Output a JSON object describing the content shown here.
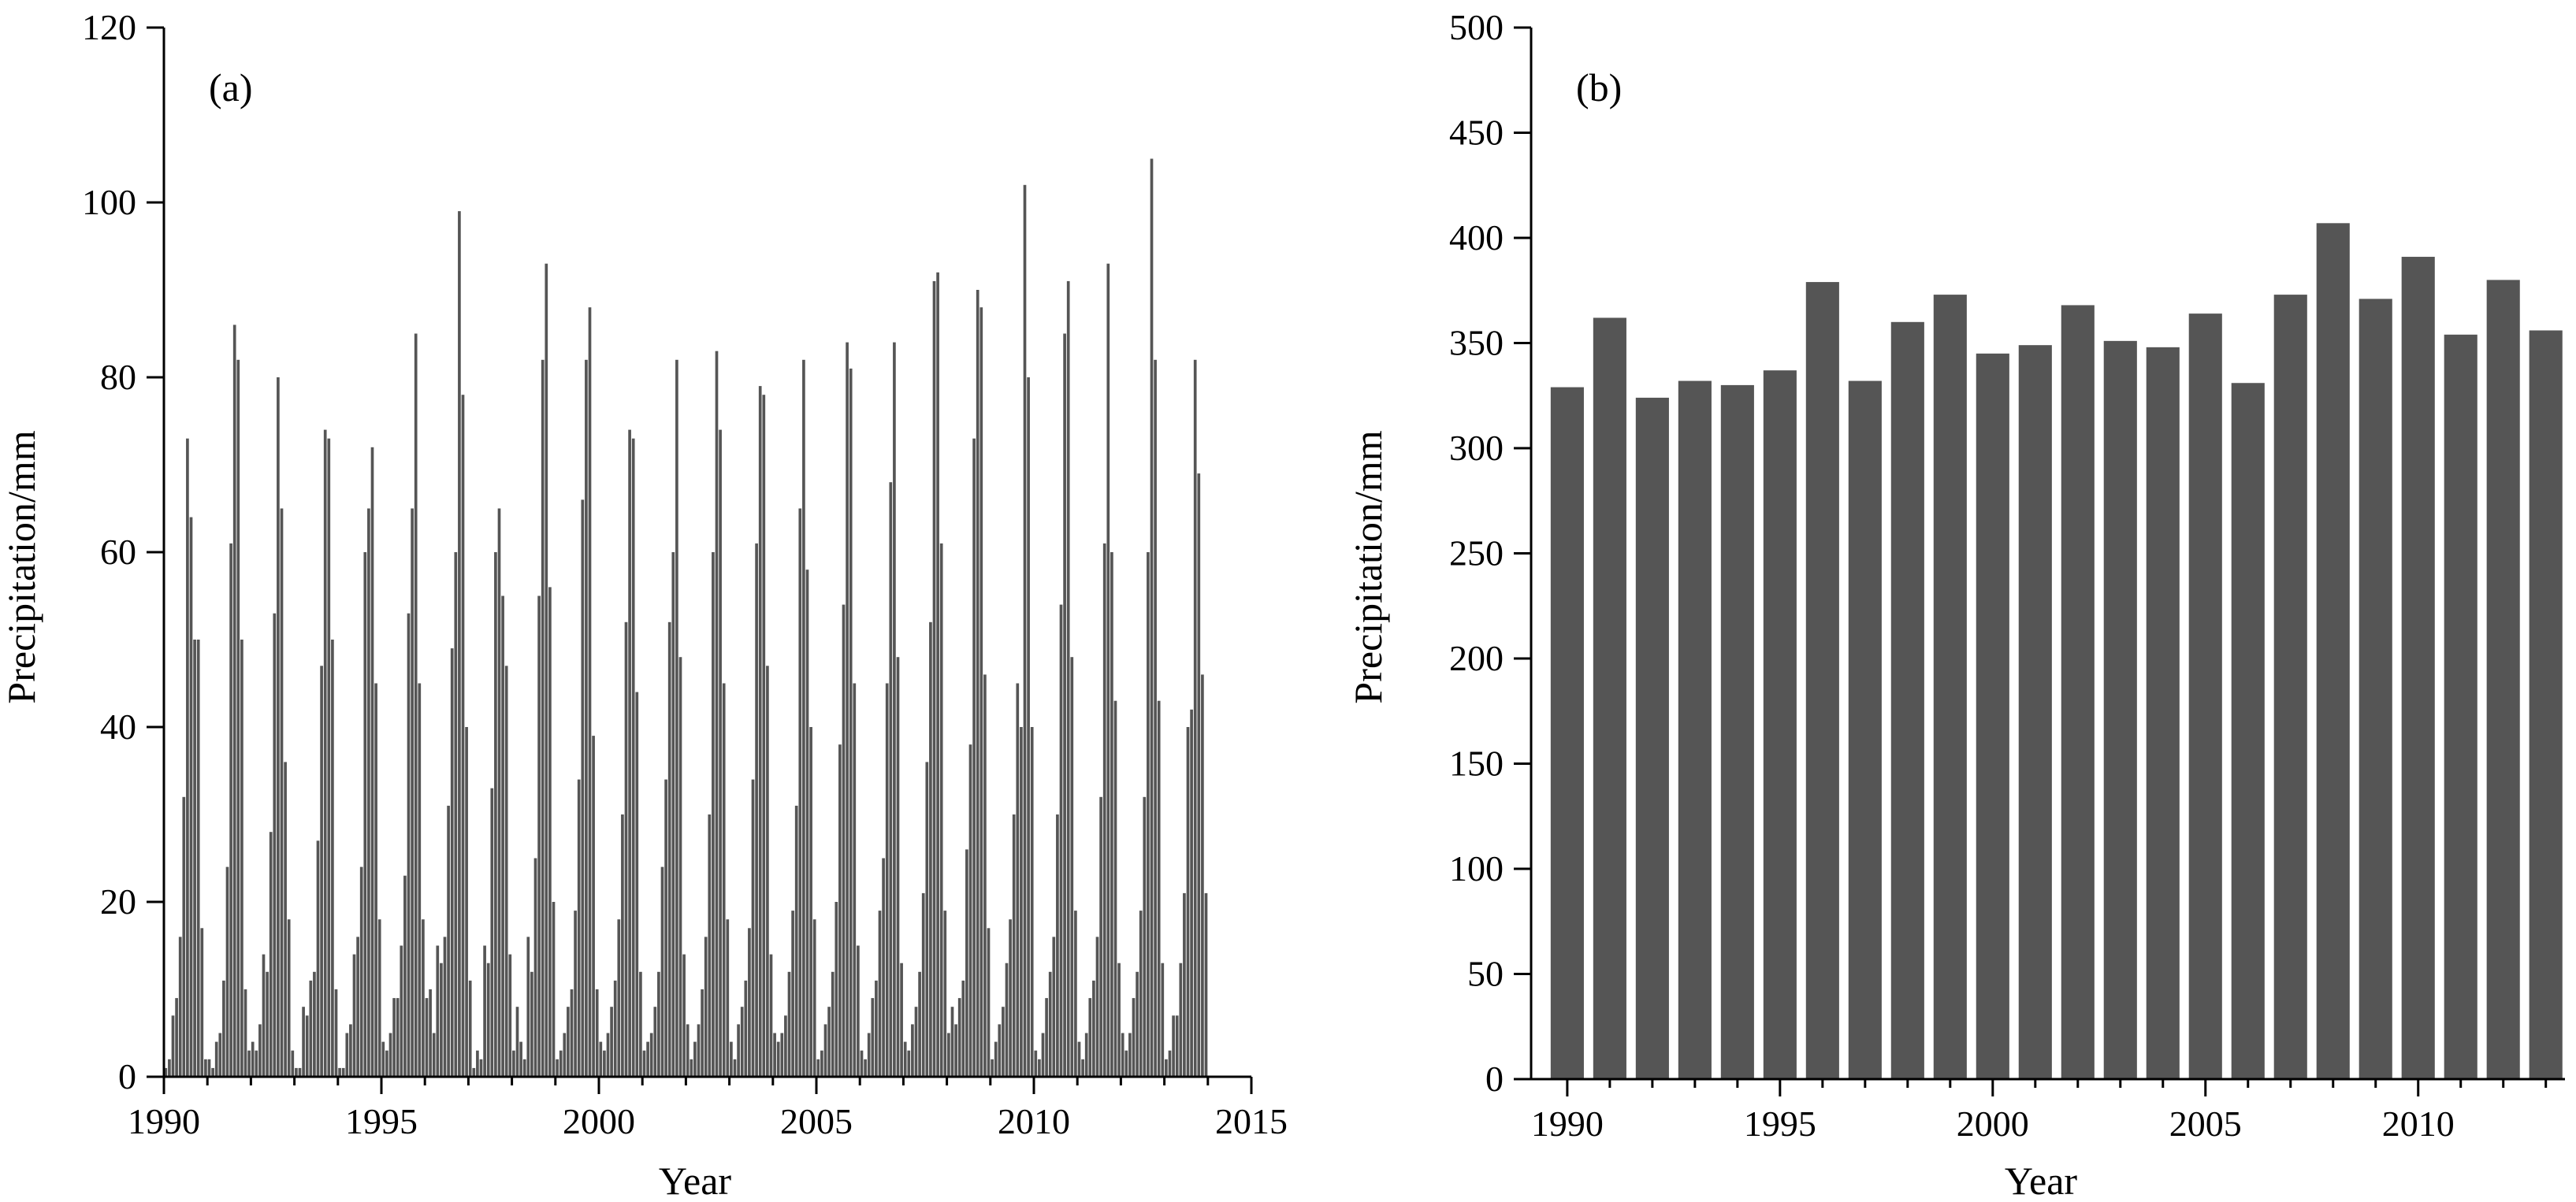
{
  "colors": {
    "bar": "#555555",
    "axis": "#000000",
    "background": "#ffffff"
  },
  "chart_data": [
    {
      "type": "bar",
      "panel_label": "(a)",
      "xlabel": "Year",
      "ylabel": "Precipitation/mm",
      "xlim": [
        1990,
        2015
      ],
      "ylim": [
        0,
        120
      ],
      "x_ticks": [
        1990,
        1995,
        2000,
        2005,
        2010,
        2015
      ],
      "y_ticks": [
        0,
        20,
        40,
        60,
        80,
        100,
        120
      ],
      "x_resolution": "monthly, Jan 1990 - Dec 2013",
      "series": [
        {
          "values": [
            1,
            2,
            7,
            9,
            16,
            32,
            73,
            64,
            50,
            50,
            17,
            2,
            2,
            1,
            4,
            5,
            11,
            24,
            61,
            86,
            82,
            50,
            10,
            3,
            4,
            3,
            6,
            14,
            12,
            28,
            53,
            80,
            65,
            36,
            18,
            3,
            1,
            1,
            8,
            7,
            11,
            12,
            27,
            47,
            74,
            73,
            50,
            10,
            1,
            1,
            5,
            6,
            14,
            16,
            24,
            60,
            65,
            72,
            45,
            18,
            4,
            3,
            5,
            9,
            9,
            15,
            23,
            53,
            65,
            85,
            45,
            18,
            9,
            10,
            5,
            15,
            13,
            16,
            31,
            49,
            60,
            99,
            78,
            40,
            11,
            1,
            3,
            2,
            15,
            13,
            33,
            60,
            65,
            55,
            47,
            14,
            3,
            8,
            4,
            2,
            16,
            12,
            25,
            55,
            82,
            93,
            56,
            20,
            2,
            3,
            5,
            8,
            10,
            19,
            34,
            66,
            82,
            88,
            39,
            10,
            4,
            3,
            5,
            8,
            11,
            18,
            30,
            52,
            74,
            73,
            44,
            12,
            3,
            4,
            5,
            8,
            12,
            24,
            34,
            52,
            60,
            82,
            48,
            14,
            6,
            2,
            4,
            6,
            10,
            16,
            30,
            60,
            83,
            74,
            45,
            18,
            4,
            2,
            6,
            8,
            11,
            17,
            34,
            61,
            79,
            78,
            47,
            14,
            5,
            4,
            5,
            7,
            12,
            19,
            31,
            65,
            82,
            58,
            40,
            18,
            2,
            3,
            6,
            8,
            12,
            20,
            38,
            54,
            84,
            81,
            45,
            15,
            3,
            2,
            5,
            9,
            11,
            19,
            25,
            45,
            68,
            84,
            48,
            13,
            4,
            3,
            6,
            8,
            12,
            21,
            36,
            52,
            91,
            92,
            61,
            19,
            5,
            8,
            6,
            9,
            11,
            26,
            38,
            73,
            90,
            88,
            46,
            17,
            2,
            4,
            6,
            8,
            13,
            18,
            30,
            45,
            40,
            102,
            80,
            40,
            3,
            2,
            5,
            9,
            12,
            16,
            30,
            54,
            85,
            91,
            48,
            19,
            4,
            2,
            5,
            9,
            11,
            16,
            32,
            61,
            93,
            60,
            43,
            13,
            5,
            3,
            5,
            9,
            12,
            19,
            32,
            60,
            105,
            82,
            43,
            13,
            2,
            3,
            7,
            7,
            13,
            21,
            40,
            42,
            82,
            69,
            46,
            21
          ]
        }
      ]
    },
    {
      "type": "bar",
      "panel_label": "(b)",
      "xlabel": "Year",
      "ylabel": "Precipitation/mm",
      "ylim": [
        0,
        500
      ],
      "x_ticks": [
        1990,
        1995,
        2000,
        2005,
        2010
      ],
      "y_ticks": [
        0,
        50,
        100,
        150,
        200,
        250,
        300,
        350,
        400,
        450,
        500
      ],
      "categories": [
        1990,
        1991,
        1992,
        1993,
        1994,
        1995,
        1996,
        1997,
        1998,
        1999,
        2000,
        2001,
        2002,
        2003,
        2004,
        2005,
        2006,
        2007,
        2008,
        2009,
        2010,
        2011,
        2012,
        2013
      ],
      "series": [
        {
          "values": [
            329,
            362,
            324,
            332,
            330,
            337,
            379,
            332,
            360,
            373,
            345,
            349,
            368,
            351,
            348,
            364,
            331,
            373,
            407,
            371,
            391,
            354,
            380,
            356
          ]
        }
      ]
    }
  ]
}
